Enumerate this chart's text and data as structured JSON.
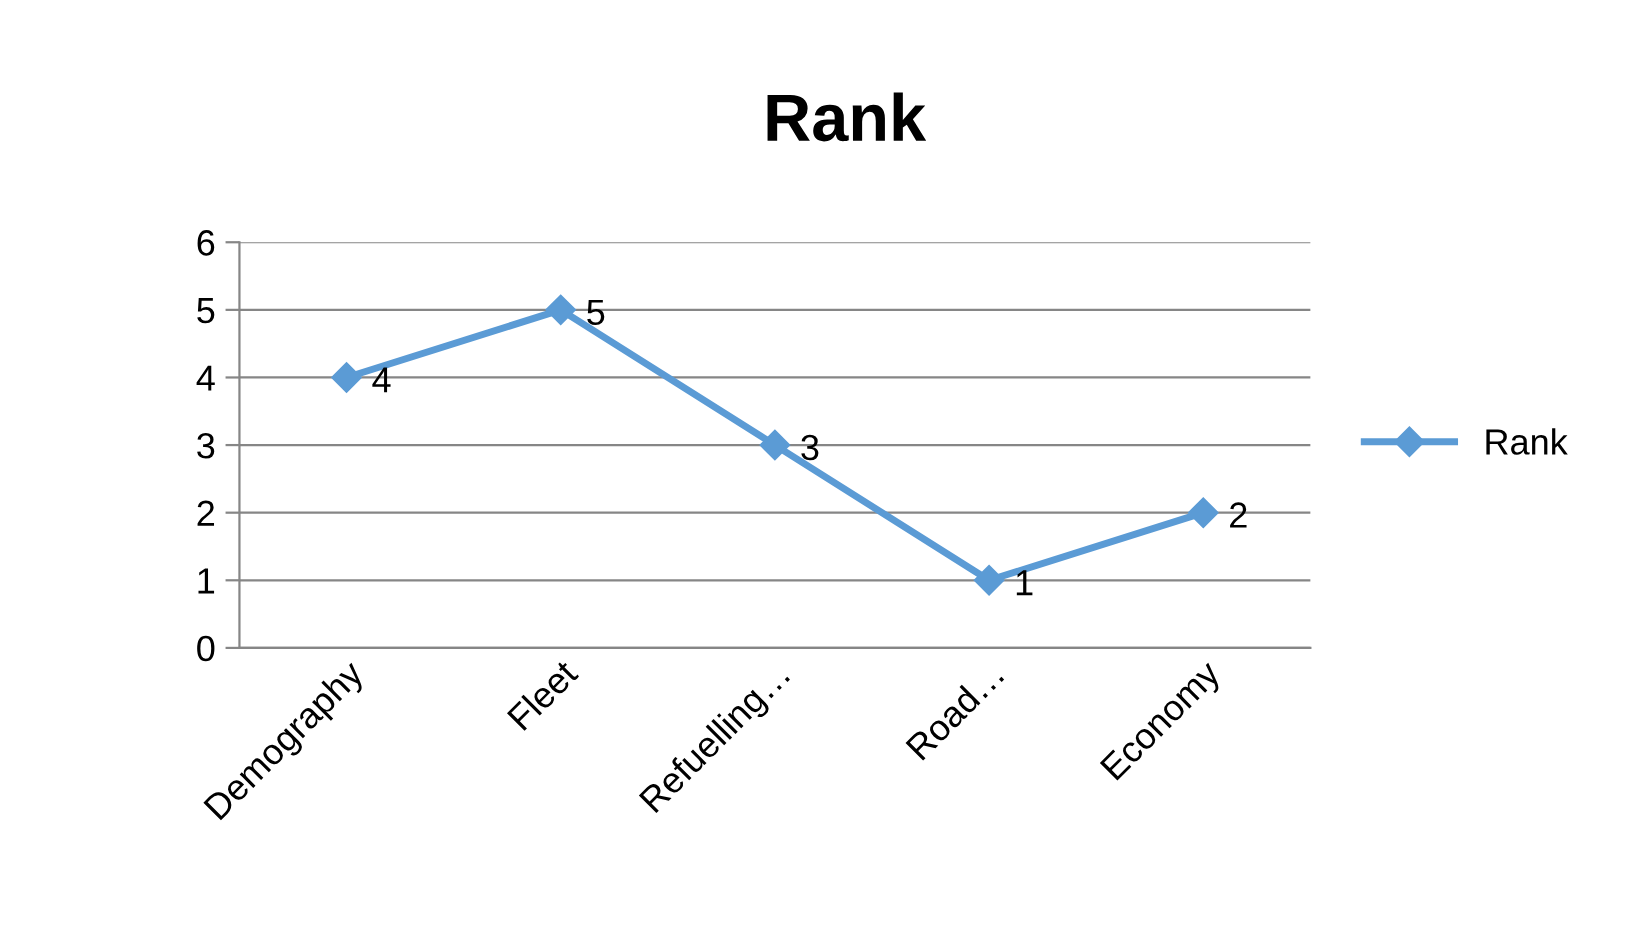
{
  "chart_data": {
    "type": "line",
    "title": "Rank",
    "categories": [
      "Demography",
      "Fleet",
      "Refuelling…",
      "Road…",
      "Economy"
    ],
    "series": [
      {
        "name": "Rank",
        "color": "#5b9bd5",
        "values": [
          4,
          5,
          3,
          1,
          2
        ]
      }
    ],
    "ylim": [
      0,
      6
    ],
    "yticks": [
      0,
      1,
      2,
      3,
      4,
      5,
      6
    ],
    "grid": "y",
    "legend": "right",
    "marker": "diamond",
    "line_style": "solid",
    "data_labels": true
  }
}
